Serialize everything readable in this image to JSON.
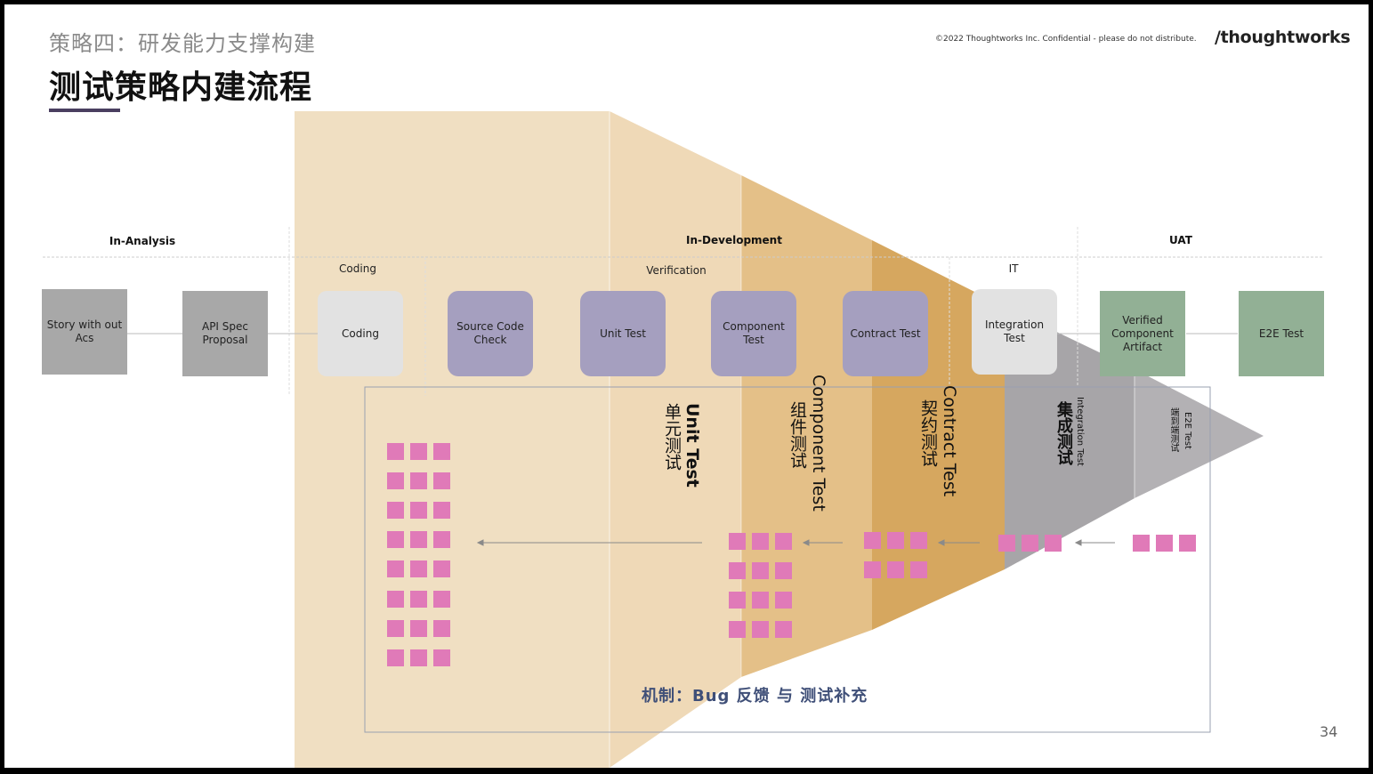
{
  "header": {
    "section": "策略四：研发能力支撑构建",
    "title": "测试策略内建流程",
    "copyright": "©2022 Thoughtworks Inc.  Confidential - please do not distribute.",
    "brand": "/thoughtworks"
  },
  "phases": {
    "in_analysis": "In-Analysis",
    "in_development": "In-Development",
    "uat": "UAT",
    "sub_coding": "Coding",
    "sub_verification": "Verification",
    "sub_it": "IT"
  },
  "steps": {
    "story": "Story with out Acs",
    "api_spec": "API Spec Proposal",
    "coding": "Coding",
    "source_code_check": "Source Code Check",
    "unit_test": "Unit Test",
    "component_test": "Component Test",
    "contract_test": "Contract Test",
    "integration_test": "Integration Test",
    "verified_artifact": "Verified Component Artifact",
    "e2e_test": "E2E Test"
  },
  "bands": {
    "unit_test_en": "Unit Test",
    "unit_test_zh": "单元测试",
    "component_test_en": "Component Test",
    "component_test_zh": "组件测试",
    "contract_test_en": "Contract Test",
    "contract_test_zh": "契约测试",
    "integration_test_en": "Integration Test",
    "integration_test_zh": "集成测试",
    "e2e_test_en": "E2E Test",
    "e2e_test_zh": "端到端测试"
  },
  "footer": {
    "mechanism": "机制：Bug 反馈 与 测试补充",
    "page_number": "34"
  },
  "colors": {
    "coding_band": "#f0dfc2",
    "component_band": "#e4c088",
    "contract_band": "#d6a75f",
    "integration_band": "#a7a5a8",
    "step_purple": "#a59fbf",
    "step_green": "#92b095",
    "step_gray": "#a8a8a8",
    "bug_square": "#e07ab8",
    "mechanism_text": "#3f4f78"
  }
}
